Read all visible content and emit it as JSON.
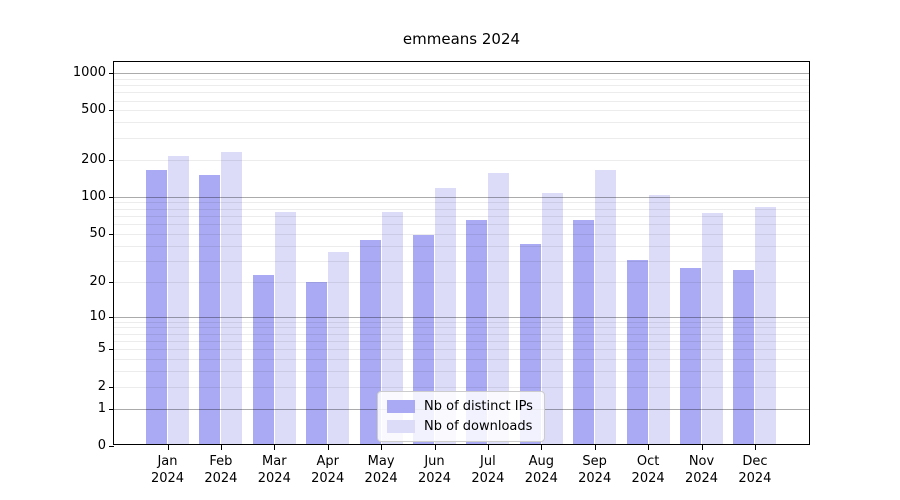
{
  "title": "emmeans 2024",
  "colors": {
    "ips": "#a9a9f4",
    "downloads": "#dcdcf9",
    "axis": "#000000",
    "grid_major": "#b0b0b0",
    "grid_minor": "#ebebeb",
    "legend_border": "#cccccc"
  },
  "legend": {
    "items": [
      {
        "label": "Nb of distinct IPs",
        "color_key": "ips"
      },
      {
        "label": "Nb of downloads",
        "color_key": "downloads"
      }
    ]
  },
  "chart_data": {
    "type": "bar",
    "title": "emmeans 2024",
    "categories": [
      "Jan 2024",
      "Feb 2024",
      "Mar 2024",
      "Apr 2024",
      "May 2024",
      "Jun 2024",
      "Jul 2024",
      "Aug 2024",
      "Sep 2024",
      "Oct 2024",
      "Nov 2024",
      "Dec 2024"
    ],
    "series": [
      {
        "name": "Nb of distinct IPs",
        "color_key": "ips",
        "values": [
          160,
          146,
          22,
          19,
          43,
          47,
          62,
          40,
          62,
          29,
          25,
          24
        ]
      },
      {
        "name": "Nb of downloads",
        "color_key": "downloads",
        "values": [
          205,
          222,
          73,
          34,
          72,
          114,
          150,
          104,
          158,
          100,
          71,
          80
        ]
      }
    ],
    "xlabel": "",
    "ylabel": "",
    "y_scale": "log1p",
    "y_ticks": [
      0,
      1,
      2,
      5,
      10,
      20,
      50,
      100,
      200,
      500,
      1000
    ],
    "ylim": [
      0,
      1200
    ],
    "grid": true,
    "grid_minor": true,
    "legend_position": "lower center"
  }
}
